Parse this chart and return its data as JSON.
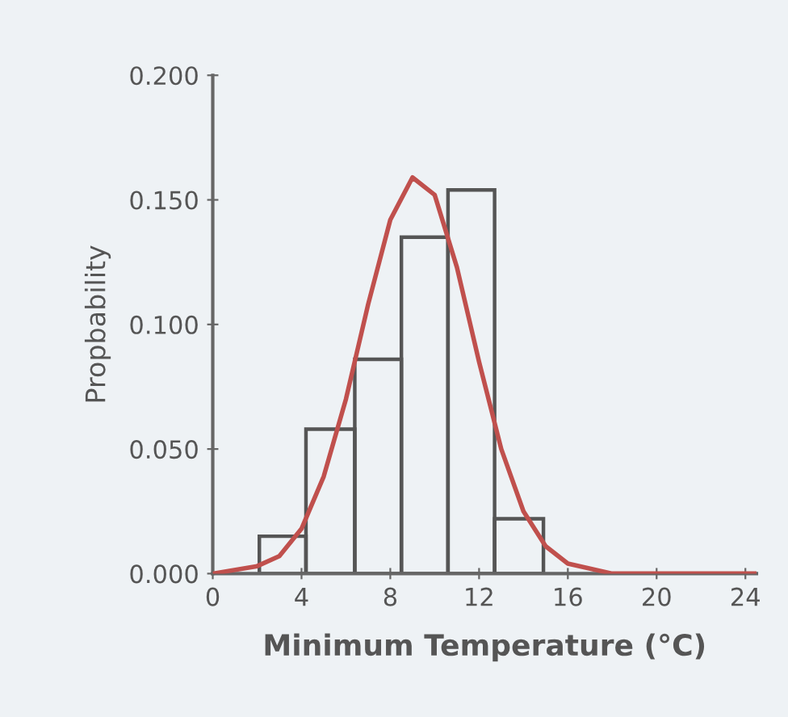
{
  "chart_data": {
    "type": "histogram",
    "xlabel": "Minimum Temperature (°C)",
    "ylabel": "Propbability",
    "bins": [
      2.1,
      4.2,
      6.4,
      8.5,
      10.6,
      12.7,
      14.9
    ],
    "values": [
      0.015,
      0.058,
      0.086,
      0.135,
      0.154,
      0.022
    ],
    "color": "#555555",
    "series": [
      {
        "type": "line",
        "color": "#c0504d",
        "x": [
          0,
          2,
          3,
          4,
          5,
          6,
          7,
          8,
          9,
          10,
          11,
          12,
          13,
          14,
          15,
          16,
          18,
          20,
          24.5
        ],
        "values": [
          0.0,
          0.003,
          0.007,
          0.018,
          0.039,
          0.07,
          0.108,
          0.142,
          0.159,
          0.152,
          0.123,
          0.085,
          0.05,
          0.025,
          0.011,
          0.004,
          0.0,
          0.0,
          0.0
        ]
      }
    ],
    "xlim": [
      0,
      24.5
    ],
    "xticks": [
      0,
      4,
      8,
      12,
      16,
      20,
      24
    ],
    "ylim": [
      0,
      0.2
    ],
    "yticks": [
      {
        "value": 0,
        "label": "0.000"
      },
      {
        "value": 0.05,
        "label": "0.050"
      },
      {
        "value": 0.1,
        "label": "0.100"
      },
      {
        "value": 0.15,
        "label": "0.150"
      },
      {
        "value": 0.2,
        "label": "0.200"
      }
    ],
    "grid": false,
    "legend": false
  }
}
